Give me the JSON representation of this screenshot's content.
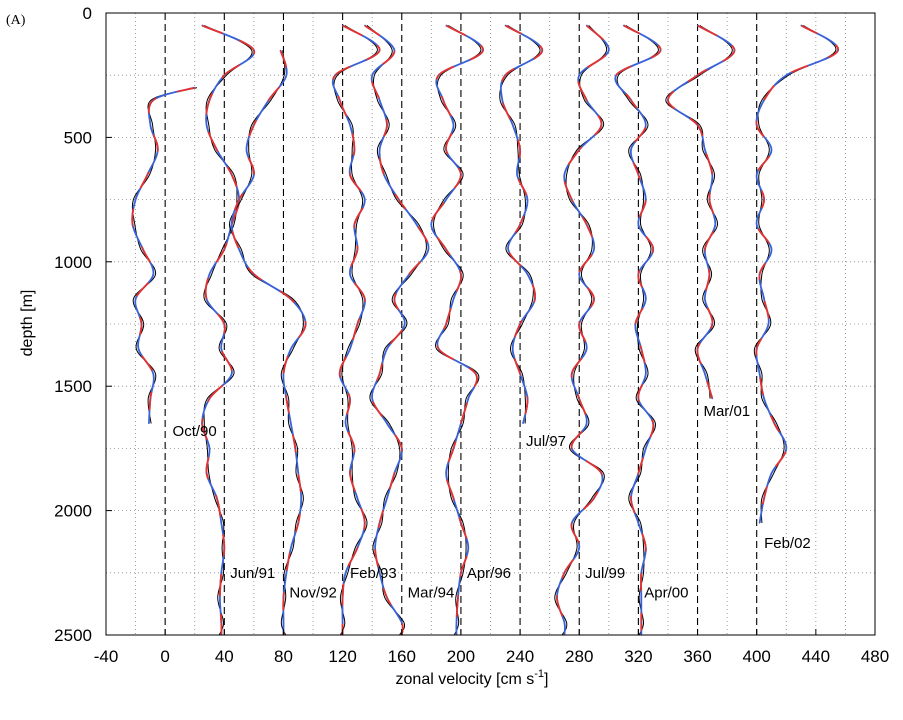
{
  "chart_data": {
    "type": "line",
    "panel_label": "(A)",
    "title": "",
    "xlabel": "zonal velocity [cm s",
    "xlabel_superscript": "-1",
    "xlabel_suffix": "]",
    "ylabel": "depth [m]",
    "xlim": [
      -40,
      480
    ],
    "ylim": [
      2500,
      0
    ],
    "y_inverted": true,
    "grid": true,
    "x_ticks": [
      -40,
      0,
      40,
      80,
      120,
      160,
      200,
      240,
      280,
      320,
      360,
      400,
      440,
      480
    ],
    "y_ticks": [
      0,
      500,
      1000,
      1500,
      2000,
      2500
    ],
    "line_colors": {
      "observed": "#000000",
      "fit_red": "#e8312a",
      "fit_blue": "#3a62d8"
    },
    "profiles": [
      {
        "label": "Oct/90",
        "offset": 0,
        "label_x": 5,
        "label_y": 1680,
        "depth": [
          300,
          350,
          450,
          550,
          650,
          750,
          850,
          950,
          1050,
          1150,
          1250,
          1350,
          1450,
          1550,
          1650
        ],
        "velocity": [
          20,
          -8,
          -10,
          -5,
          -12,
          -20,
          -22,
          -15,
          -8,
          -20,
          -16,
          -18,
          -8,
          -10,
          -11
        ]
      },
      {
        "label": "Jun/91",
        "offset": 40,
        "label_x": 44,
        "label_y": 2250,
        "depth": [
          50,
          150,
          250,
          350,
          450,
          550,
          650,
          750,
          850,
          950,
          1050,
          1150,
          1250,
          1350,
          1450,
          1550,
          1650,
          1750,
          1850,
          1950,
          2050,
          2150,
          2250,
          2350,
          2450,
          2500
        ],
        "velocity": [
          25,
          60,
          40,
          30,
          28,
          35,
          45,
          50,
          45,
          40,
          30,
          28,
          40,
          38,
          45,
          30,
          25,
          30,
          28,
          35,
          38,
          40,
          38,
          37,
          38,
          38
        ]
      },
      {
        "label": "Nov/92",
        "offset": 80,
        "label_x": 84,
        "label_y": 2330,
        "depth": [
          150,
          250,
          350,
          450,
          550,
          650,
          750,
          850,
          950,
          1050,
          1150,
          1250,
          1350,
          1450,
          1550,
          1650,
          1750,
          1850,
          1950,
          2050,
          2150,
          2250,
          2350,
          2450,
          2500
        ],
        "velocity": [
          78,
          82,
          70,
          60,
          55,
          60,
          50,
          45,
          50,
          60,
          85,
          95,
          85,
          80,
          82,
          85,
          88,
          90,
          92,
          90,
          85,
          82,
          80,
          80,
          80
        ]
      },
      {
        "label": "Feb/93",
        "offset": 120,
        "label_x": 125,
        "label_y": 2250,
        "depth": [
          50,
          150,
          250,
          350,
          450,
          550,
          650,
          750,
          850,
          950,
          1050,
          1150,
          1250,
          1350,
          1450,
          1550,
          1650,
          1750,
          1850,
          1950,
          2050,
          2150,
          2250,
          2350,
          2450,
          2500
        ],
        "velocity": [
          120,
          145,
          115,
          118,
          125,
          128,
          125,
          135,
          128,
          130,
          125,
          135,
          130,
          125,
          118,
          125,
          122,
          128,
          125,
          130,
          135,
          130,
          122,
          120,
          120,
          120
        ]
      },
      {
        "label": "Mar/94",
        "offset": 160,
        "label_x": 164,
        "label_y": 2330,
        "depth": [
          50,
          150,
          250,
          350,
          450,
          550,
          650,
          750,
          850,
          950,
          1050,
          1150,
          1250,
          1350,
          1450,
          1550,
          1650,
          1750,
          1850,
          1950,
          2050,
          2150,
          2250,
          2350,
          2450,
          2500
        ],
        "velocity": [
          135,
          155,
          140,
          145,
          150,
          145,
          148,
          158,
          170,
          178,
          165,
          155,
          162,
          150,
          145,
          140,
          150,
          160,
          155,
          150,
          145,
          142,
          145,
          150,
          160,
          160
        ]
      },
      {
        "label": "Apr/96",
        "offset": 200,
        "label_x": 204,
        "label_y": 2250,
        "depth": [
          50,
          150,
          250,
          350,
          450,
          550,
          650,
          750,
          850,
          950,
          1050,
          1150,
          1250,
          1350,
          1450,
          1550,
          1650,
          1750,
          1850,
          1950,
          2050,
          2150,
          2250,
          2350,
          2450,
          2500
        ],
        "velocity": [
          190,
          215,
          185,
          188,
          195,
          190,
          200,
          190,
          180,
          190,
          200,
          195,
          190,
          185,
          210,
          205,
          200,
          195,
          190,
          195,
          200,
          205,
          200,
          198,
          197,
          197
        ]
      },
      {
        "label": "Jul/97",
        "offset": 240,
        "label_x": 244,
        "label_y": 1720,
        "depth": [
          50,
          150,
          250,
          350,
          450,
          550,
          650,
          750,
          850,
          950,
          1050,
          1150,
          1250,
          1350,
          1450,
          1550,
          1650
        ],
        "velocity": [
          230,
          255,
          230,
          228,
          235,
          240,
          238,
          245,
          240,
          232,
          245,
          250,
          240,
          235,
          240,
          245,
          242
        ]
      },
      {
        "label": "Jul/99",
        "offset": 280,
        "label_x": 284,
        "label_y": 2250,
        "depth": [
          50,
          150,
          250,
          350,
          450,
          550,
          650,
          750,
          850,
          950,
          1050,
          1150,
          1250,
          1350,
          1450,
          1550,
          1650,
          1750,
          1850,
          1950,
          2050,
          2150,
          2250,
          2350,
          2450,
          2500
        ],
        "velocity": [
          285,
          300,
          280,
          285,
          295,
          280,
          270,
          275,
          285,
          290,
          280,
          290,
          280,
          285,
          275,
          280,
          285,
          275,
          295,
          290,
          275,
          280,
          270,
          265,
          270,
          270
        ]
      },
      {
        "label": "Apr/00",
        "offset": 320,
        "label_x": 324,
        "label_y": 2330,
        "depth": [
          50,
          150,
          250,
          350,
          450,
          550,
          650,
          750,
          850,
          950,
          1050,
          1150,
          1250,
          1350,
          1450,
          1550,
          1650,
          1750,
          1850,
          1950,
          2050,
          2150,
          2250,
          2350,
          2450,
          2500
        ],
        "velocity": [
          310,
          335,
          305,
          315,
          325,
          315,
          320,
          325,
          320,
          330,
          320,
          325,
          318,
          322,
          325,
          320,
          330,
          325,
          320,
          315,
          320,
          325,
          322,
          322,
          322,
          322
        ]
      },
      {
        "label": "Mar/01",
        "offset": 360,
        "label_x": 364,
        "label_y": 1600,
        "depth": [
          50,
          150,
          250,
          350,
          450,
          550,
          650,
          750,
          850,
          950,
          1050,
          1150,
          1250,
          1350,
          1450,
          1550
        ],
        "velocity": [
          360,
          385,
          360,
          340,
          360,
          365,
          370,
          368,
          372,
          365,
          368,
          365,
          370,
          360,
          365,
          370
        ]
      },
      {
        "label": "Feb/02",
        "offset": 400,
        "label_x": 405,
        "label_y": 2130,
        "depth": [
          50,
          150,
          250,
          350,
          450,
          550,
          650,
          750,
          850,
          950,
          1050,
          1150,
          1250,
          1350,
          1450,
          1550,
          1650,
          1750,
          1850,
          1950,
          2050
        ],
        "velocity": [
          430,
          455,
          420,
          405,
          400,
          410,
          400,
          405,
          400,
          410,
          402,
          405,
          408,
          400,
          402,
          405,
          412,
          420,
          410,
          405,
          402
        ]
      }
    ]
  }
}
